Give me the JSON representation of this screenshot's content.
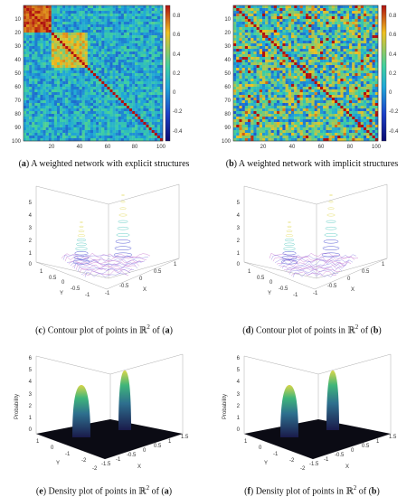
{
  "figure": {
    "panels": [
      {
        "id": "a",
        "caption_label": "a",
        "caption_text": " A weighted network with explicit structures",
        "kind": "heatmap",
        "x_ticks": [
          "20",
          "40",
          "60",
          "80",
          "100"
        ],
        "y_ticks": [
          "10",
          "20",
          "30",
          "40",
          "50",
          "60",
          "70",
          "80",
          "90",
          "100"
        ],
        "colorbar_ticks": [
          "0.8",
          "0.6",
          "0.4",
          "0.2",
          "0",
          "-0.2",
          "-0.4"
        ]
      },
      {
        "id": "b",
        "caption_label": "b",
        "caption_text": " A weighted network with implicit structures",
        "kind": "heatmap",
        "x_ticks": [
          "20",
          "40",
          "60",
          "80",
          "100"
        ],
        "y_ticks": [
          "10",
          "20",
          "30",
          "40",
          "50",
          "60",
          "70",
          "80",
          "90",
          "100"
        ],
        "colorbar_ticks": [
          "0.8",
          "0.6",
          "0.4",
          "0.2",
          "0",
          "-0.2",
          "-0.4"
        ]
      },
      {
        "id": "c",
        "caption_label": "c",
        "caption_pre": " Contour plot of points in ",
        "caption_space": "ℝ",
        "caption_exp": "2",
        "caption_mid": " of (",
        "caption_ref": "a",
        "caption_post": ")",
        "kind": "contour3d",
        "z_ticks": [
          "5",
          "4",
          "3",
          "2",
          "1",
          "0"
        ],
        "x_ticks": [
          "-1",
          "-0.5",
          "0",
          "0.5",
          "1"
        ],
        "y_ticks": [
          "1",
          "0.5",
          "0",
          "-0.5",
          "-1"
        ],
        "x_label": "X",
        "y_label": "Y"
      },
      {
        "id": "d",
        "caption_label": "d",
        "caption_pre": " Contour plot of points in ",
        "caption_space": "ℝ",
        "caption_exp": "2",
        "caption_mid": " of (",
        "caption_ref": "b",
        "caption_post": ")",
        "kind": "contour3d",
        "z_ticks": [
          "5",
          "4",
          "3",
          "2",
          "1",
          "0"
        ],
        "x_ticks": [
          "-1",
          "-0.5",
          "0",
          "0.5",
          "1"
        ],
        "y_ticks": [
          "1",
          "0.5",
          "0",
          "-0.5",
          "-1"
        ],
        "x_label": "X",
        "y_label": "Y"
      },
      {
        "id": "e",
        "caption_label": "e",
        "caption_pre": " Density plot of points in ",
        "caption_space": "ℝ",
        "caption_exp": "2",
        "caption_mid": " of (",
        "caption_ref": "a",
        "caption_post": ")",
        "kind": "density3d",
        "z_ticks": [
          "6",
          "5",
          "4",
          "3",
          "2",
          "1",
          "0"
        ],
        "x_ticks": [
          "-2",
          "-1.5",
          "-1",
          "-0.5",
          "0",
          "0.5",
          "1",
          "1.5"
        ],
        "y_ticks": [
          "1",
          "0",
          "-1",
          "-2"
        ],
        "x_label": "X",
        "y_label": "Y",
        "z_label": "Probability"
      },
      {
        "id": "f",
        "caption_label": "f",
        "caption_pre": " Density plot of points in ",
        "caption_space": "ℝ",
        "caption_exp": "2",
        "caption_mid": " of (",
        "caption_ref": "b",
        "caption_post": ")",
        "kind": "density3d",
        "z_ticks": [
          "6",
          "5",
          "4",
          "3",
          "2",
          "1",
          "0"
        ],
        "x_ticks": [
          "-2",
          "-1.5",
          "-1",
          "-0.5",
          "0",
          "0.5",
          "1",
          "1.5"
        ],
        "y_ticks": [
          "1",
          "0",
          "-1",
          "-2"
        ],
        "x_label": "X",
        "y_label": "Y",
        "z_label": "Probability"
      }
    ],
    "colors": {
      "heat_high": "#c81e1e",
      "heat_mid": "#2fb5c9",
      "heat_low": "#14147a",
      "contour_peak": "#e8e27a",
      "contour_base": "#5a5fd6",
      "density_dark": "#0a0a12",
      "density_peak": "#d8d64a"
    }
  }
}
